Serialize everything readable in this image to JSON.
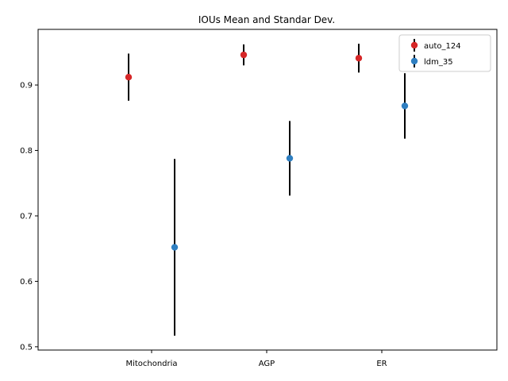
{
  "chart_data": {
    "type": "scatter",
    "title": "IOUs Mean and Standar Dev.",
    "xlabel": "",
    "ylabel": "",
    "categories": [
      "Mitochondria",
      "AGP",
      "ER"
    ],
    "ylim": [
      0.495,
      0.985
    ],
    "yticks": [
      "0.5",
      "0.6",
      "0.7",
      "0.8",
      "0.9"
    ],
    "grid": false,
    "legend_position": "top-right",
    "series": [
      {
        "name": "auto_124",
        "color": "#d62728",
        "mean": [
          0.912,
          0.946,
          0.941
        ],
        "std": [
          0.036,
          0.016,
          0.022
        ]
      },
      {
        "name": "ldm_35",
        "color": "#2f7fc1",
        "mean": [
          0.652,
          0.788,
          0.868
        ],
        "std": [
          0.135,
          0.057,
          0.05
        ]
      }
    ],
    "errorbar_color": "#000000"
  }
}
